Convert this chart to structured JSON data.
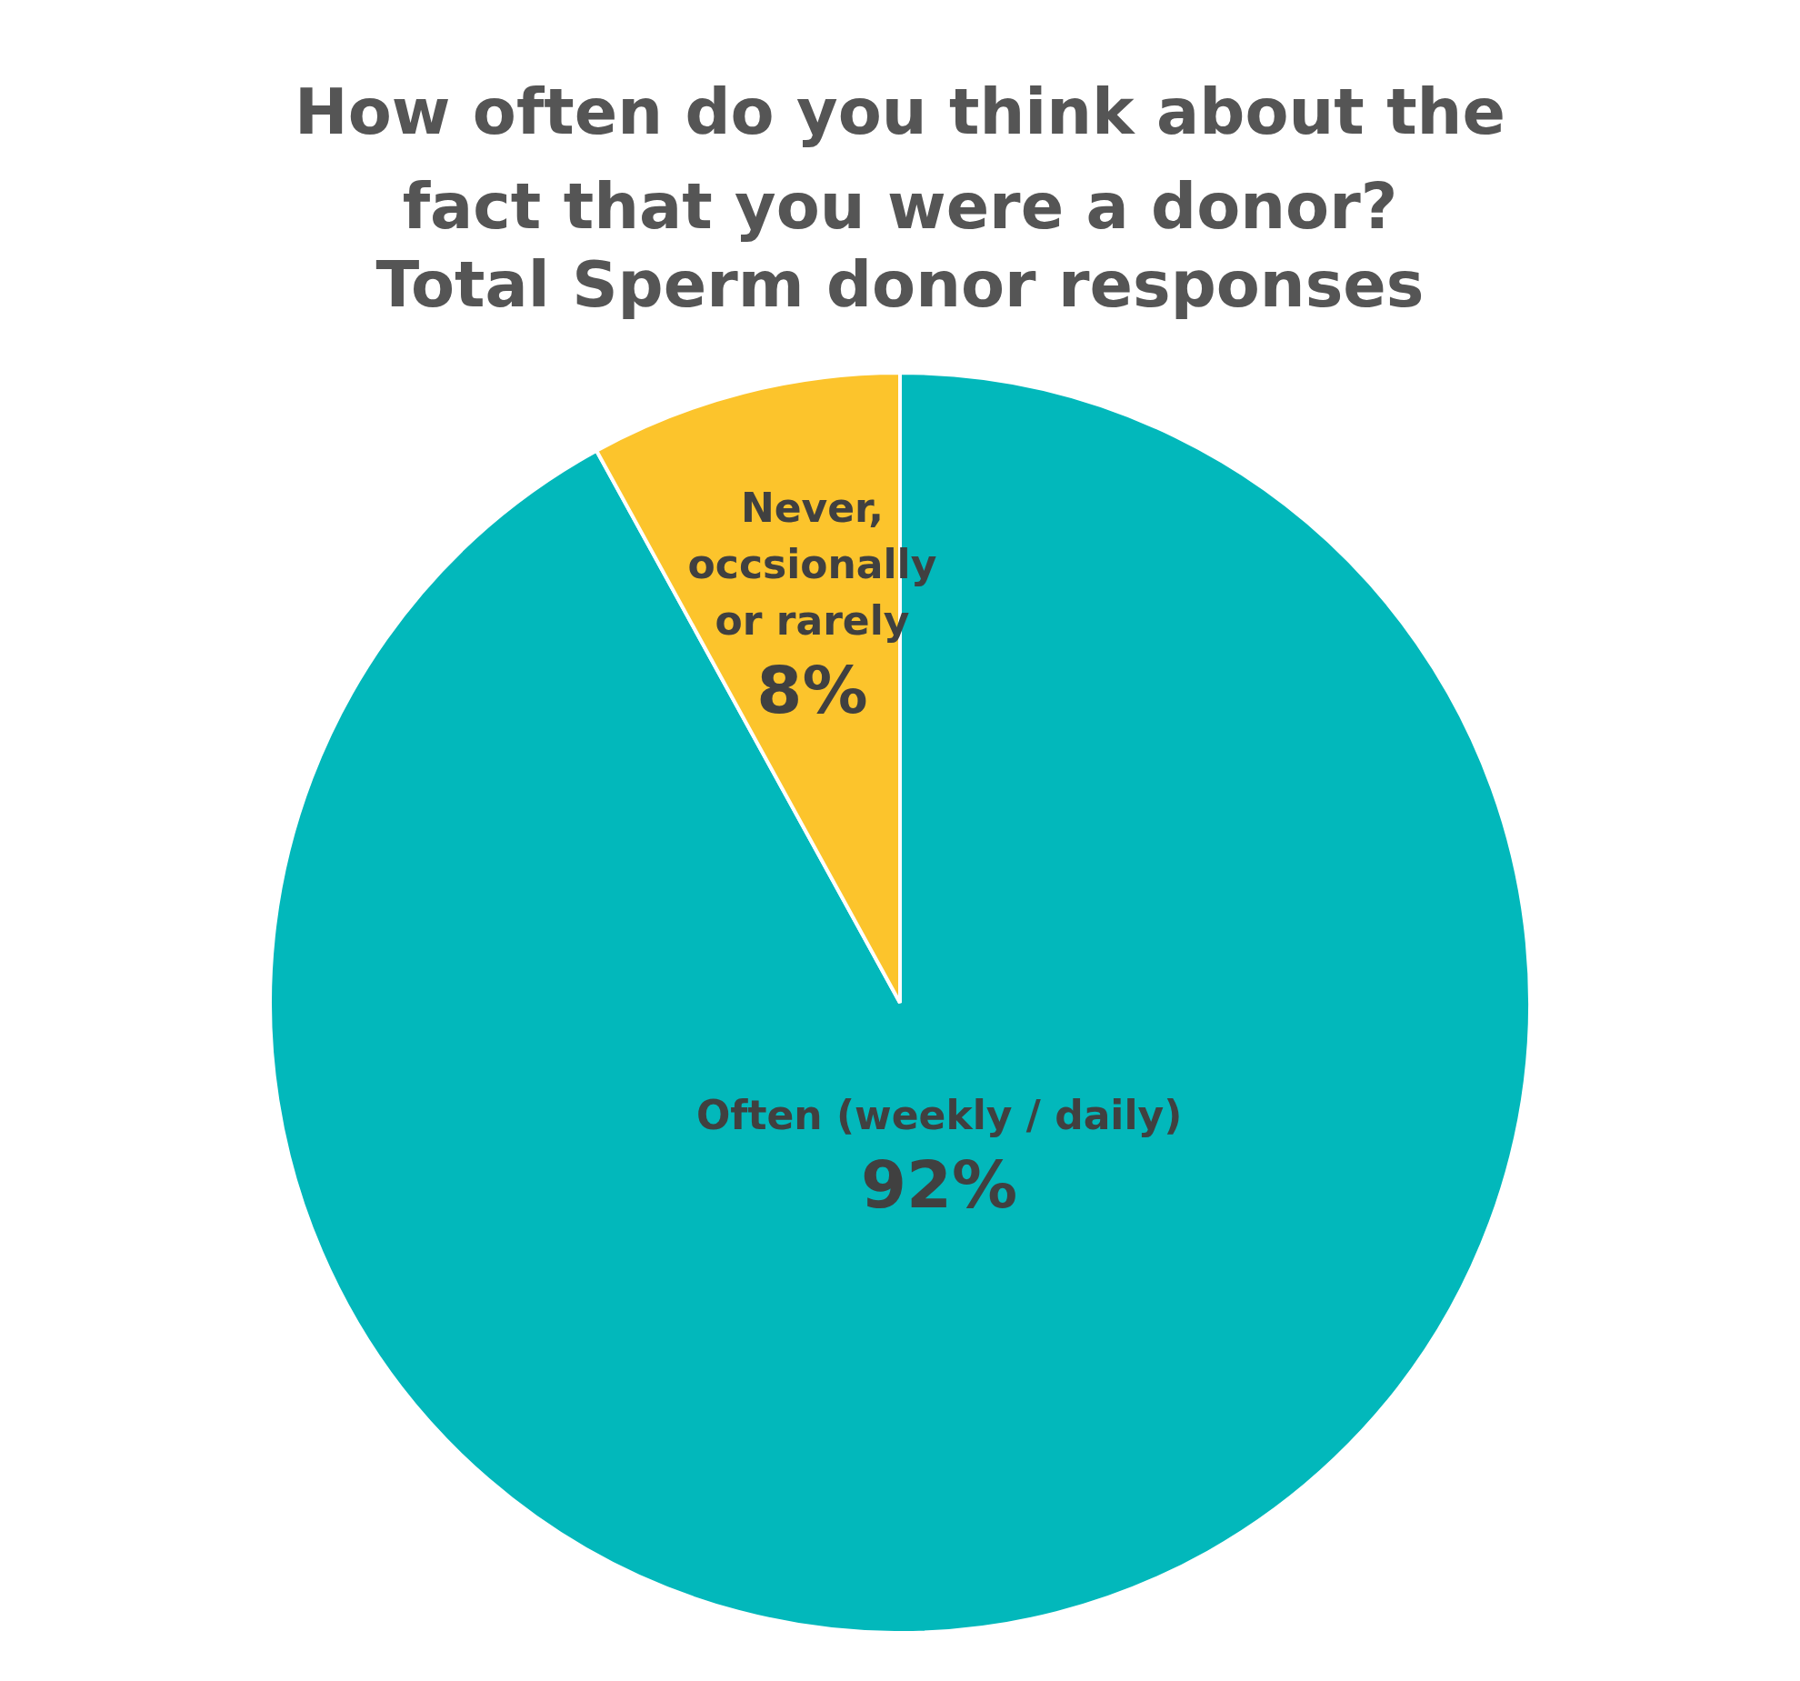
{
  "chart_data": {
    "type": "pie",
    "title": "How often do you think about the fact that you were a donor?",
    "subtitle": "Total Sperm donor responses",
    "categories": [
      "Often (weekly / daily)",
      "Never, occsionally or rarely"
    ],
    "values": [
      92,
      8
    ],
    "colors": [
      "#02b8bb",
      "#fcc42c"
    ],
    "value_labels": [
      "92%",
      "8%"
    ],
    "legend": false
  }
}
